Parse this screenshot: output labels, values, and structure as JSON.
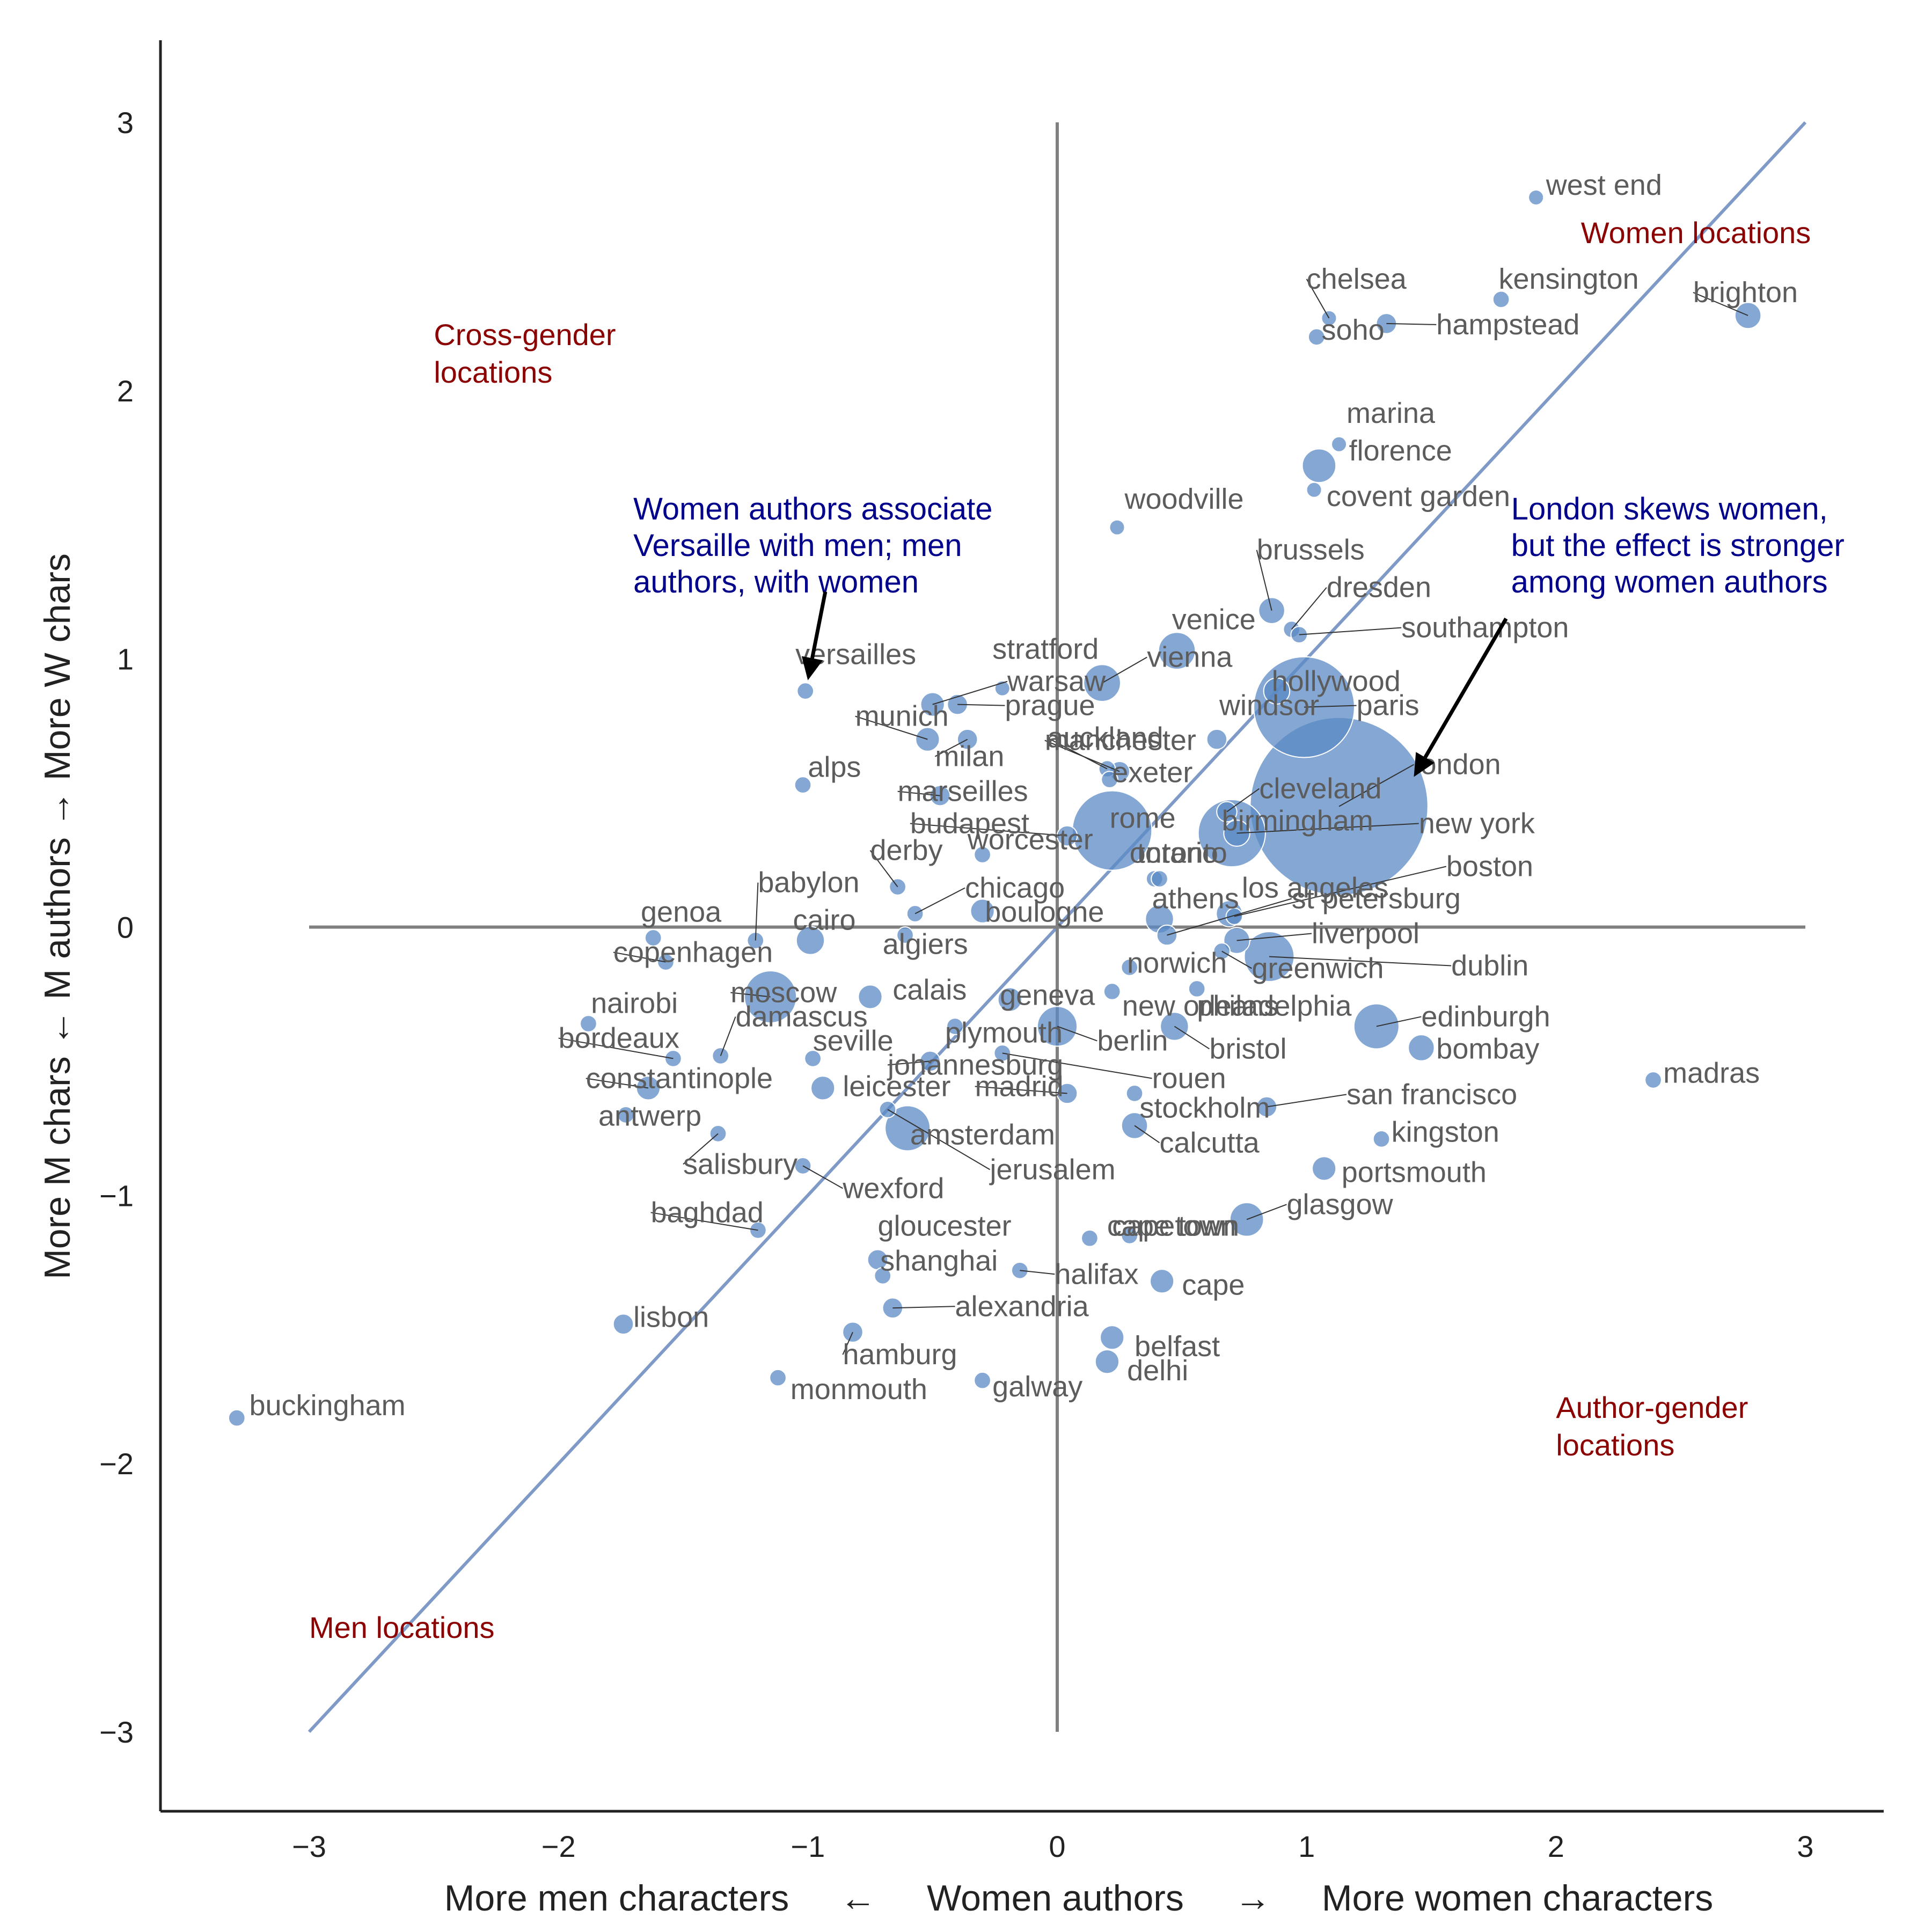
{
  "chart_data": {
    "type": "scatter",
    "xlabel": "More men characters     ←     Women authors     →     More women characters",
    "ylabel": "More M chars ← M authors → More W chars",
    "xlim": [
      -3.6,
      3.3
    ],
    "ylim": [
      -3.3,
      3.3
    ],
    "x_ticks": [
      {
        "value": -3,
        "label": "−3"
      },
      {
        "value": -2,
        "label": "−2"
      },
      {
        "value": -1,
        "label": "−1"
      },
      {
        "value": 0,
        "label": "0"
      },
      {
        "value": 1,
        "label": "1"
      },
      {
        "value": 2,
        "label": "2"
      },
      {
        "value": 3,
        "label": "3"
      }
    ],
    "y_ticks": [
      {
        "value": -3,
        "label": "−3"
      },
      {
        "value": -2,
        "label": "−2"
      },
      {
        "value": -1,
        "label": "−1"
      },
      {
        "value": 0,
        "label": "0"
      },
      {
        "value": 1,
        "label": "1"
      },
      {
        "value": 2,
        "label": "2"
      },
      {
        "value": 3,
        "label": "3"
      }
    ],
    "grid": false,
    "reference_lines": {
      "diagonal": [
        [
          -3,
          -3
        ],
        [
          3,
          3
        ]
      ],
      "horizontal_y": 0,
      "vertical_x": 0
    },
    "colors": {
      "points": "#5b8ac6",
      "diagonal": "#7f9ac6",
      "quadrant_lines": "#808080",
      "quadrant_labels": "#8b0000",
      "annotations": "#00008b",
      "point_labels": "#5c5c5c"
    },
    "quadrant_labels": [
      {
        "text": "Women locations",
        "x": 2.1,
        "y": 2.55
      },
      {
        "text": "Cross-gender",
        "x": -2.5,
        "y": 2.17
      },
      {
        "text": "locations",
        "x": -2.5,
        "y": 2.03
      },
      {
        "text": "Author-gender",
        "x": 2.0,
        "y": -1.83
      },
      {
        "text": "locations",
        "x": 2.0,
        "y": -1.97
      },
      {
        "text": "Men locations",
        "x": -3.0,
        "y": -2.65
      }
    ],
    "annotations": [
      {
        "lines": [
          "Women authors associate",
          "Versaille with men; men",
          "authors, with women"
        ],
        "x": -1.7,
        "y": 1.52,
        "arrow_from": [
          -0.93,
          1.25
        ],
        "arrow_to": [
          -1.0,
          0.92
        ]
      },
      {
        "lines": [
          "London skews women,",
          "but the effect is stronger",
          "among women authors"
        ],
        "x": 1.82,
        "y": 1.52,
        "arrow_from": [
          1.8,
          1.15
        ],
        "arrow_to": [
          1.43,
          0.56
        ]
      }
    ],
    "points": [
      {
        "name": "west end",
        "x": 1.92,
        "y": 2.72,
        "size": 1,
        "lx": 1.96,
        "ly": 2.73
      },
      {
        "name": "chelsea",
        "x": 1.09,
        "y": 2.27,
        "size": 1,
        "lx": 1.0,
        "ly": 2.38
      },
      {
        "name": "kensington",
        "x": 1.78,
        "y": 2.34,
        "size": 1.2,
        "lx": 1.77,
        "ly": 2.38
      },
      {
        "name": "brighton",
        "x": 2.77,
        "y": 2.28,
        "size": 3,
        "lx": 2.55,
        "ly": 2.33
      },
      {
        "name": "hampstead",
        "x": 1.32,
        "y": 2.25,
        "size": 1.8,
        "lx": 1.52,
        "ly": 2.21
      },
      {
        "name": "soho",
        "x": 1.04,
        "y": 2.2,
        "size": 1.2,
        "lx": 1.06,
        "ly": 2.19
      },
      {
        "name": "marina",
        "x": 1.13,
        "y": 1.8,
        "size": 1,
        "lx": 1.16,
        "ly": 1.88
      },
      {
        "name": "florence",
        "x": 1.05,
        "y": 1.72,
        "size": 5,
        "lx": 1.17,
        "ly": 1.74
      },
      {
        "name": "covent garden",
        "x": 1.03,
        "y": 1.63,
        "size": 1,
        "lx": 1.08,
        "ly": 1.57
      },
      {
        "name": "woodville",
        "x": 0.24,
        "y": 1.49,
        "size": 1,
        "lx": 0.27,
        "ly": 1.56
      },
      {
        "name": "brussels",
        "x": 0.86,
        "y": 1.18,
        "size": 3,
        "lx": 0.8,
        "ly": 1.37
      },
      {
        "name": "dresden",
        "x": 0.94,
        "y": 1.11,
        "size": 1.2,
        "lx": 1.08,
        "ly": 1.23
      },
      {
        "name": "southampton",
        "x": 0.97,
        "y": 1.09,
        "size": 1.2,
        "lx": 1.38,
        "ly": 1.08
      },
      {
        "name": "venice",
        "x": 0.48,
        "y": 1.03,
        "size": 6,
        "lx": 0.46,
        "ly": 1.11
      },
      {
        "name": "vienna",
        "x": 0.18,
        "y": 0.91,
        "size": 6,
        "lx": 0.36,
        "ly": 0.97
      },
      {
        "name": "stratford",
        "x": -0.22,
        "y": 0.89,
        "size": 1,
        "lx": -0.26,
        "ly": 1.0
      },
      {
        "name": "versailles",
        "x": -1.01,
        "y": 0.88,
        "size": 1.2,
        "lx": -1.05,
        "ly": 0.98
      },
      {
        "name": "hollywood",
        "x": 0.88,
        "y": 0.88,
        "size": 3,
        "lx": 0.86,
        "ly": 0.88
      },
      {
        "name": "warsaw",
        "x": -0.5,
        "y": 0.83,
        "size": 2.5,
        "lx": -0.2,
        "ly": 0.88
      },
      {
        "name": "prague",
        "x": -0.4,
        "y": 0.83,
        "size": 1.8,
        "lx": -0.21,
        "ly": 0.79
      },
      {
        "name": "paris",
        "x": 0.99,
        "y": 0.82,
        "size": 45,
        "lx": 1.2,
        "ly": 0.79
      },
      {
        "name": "windsor",
        "x": 0.64,
        "y": 0.7,
        "size": 1.8,
        "lx": 0.65,
        "ly": 0.79
      },
      {
        "name": "munich",
        "x": -0.52,
        "y": 0.7,
        "size": 2.5,
        "lx": -0.81,
        "ly": 0.75
      },
      {
        "name": "milan",
        "x": -0.36,
        "y": 0.7,
        "size": 1.8,
        "lx": -0.49,
        "ly": 0.6
      },
      {
        "name": "auckland",
        "x": 0.2,
        "y": 0.59,
        "size": 1.2,
        "lx": -0.04,
        "ly": 0.67
      },
      {
        "name": "manchester",
        "x": 0.25,
        "y": 0.58,
        "size": 1.8,
        "lx": -0.05,
        "ly": 0.66
      },
      {
        "name": "london",
        "x": 1.13,
        "y": 0.45,
        "size": 140,
        "lx": 1.43,
        "ly": 0.57
      },
      {
        "name": "alps",
        "x": -1.02,
        "y": 0.53,
        "size": 1.2,
        "lx": -1.0,
        "ly": 0.56
      },
      {
        "name": "exeter",
        "x": 0.21,
        "y": 0.55,
        "size": 1.2,
        "lx": 0.22,
        "ly": 0.54
      },
      {
        "name": "marseilles",
        "x": -0.47,
        "y": 0.49,
        "size": 1.8,
        "lx": -0.64,
        "ly": 0.47
      },
      {
        "name": "cleveland",
        "x": 0.68,
        "y": 0.43,
        "size": 1.8,
        "lx": 0.81,
        "ly": 0.48
      },
      {
        "name": "rome",
        "x": 0.22,
        "y": 0.36,
        "size": 28,
        "lx": 0.21,
        "ly": 0.37
      },
      {
        "name": "birmingham",
        "x": 0.7,
        "y": 0.35,
        "size": 20,
        "lx": 0.66,
        "ly": 0.36
      },
      {
        "name": "new york",
        "x": 0.72,
        "y": 0.35,
        "size": 3,
        "lx": 1.45,
        "ly": 0.35
      },
      {
        "name": "budapest",
        "x": 0.04,
        "y": 0.34,
        "size": 1.8,
        "lx": -0.59,
        "ly": 0.35
      },
      {
        "name": "worcester",
        "x": -0.3,
        "y": 0.27,
        "size": 1.2,
        "lx": -0.36,
        "ly": 0.29
      },
      {
        "name": "derby",
        "x": -0.64,
        "y": 0.15,
        "size": 1.2,
        "lx": -0.75,
        "ly": 0.25
      },
      {
        "name": "ontario",
        "x": 0.39,
        "y": 0.18,
        "size": 1.2,
        "lx": 0.29,
        "ly": 0.24
      },
      {
        "name": "toronto",
        "x": 0.41,
        "y": 0.18,
        "size": 1.2,
        "lx": 0.32,
        "ly": 0.24
      },
      {
        "name": "boston",
        "x": 0.71,
        "y": 0.04,
        "size": 1.2,
        "lx": 1.56,
        "ly": 0.19
      },
      {
        "name": "babylon",
        "x": -1.21,
        "y": -0.05,
        "size": 1.2,
        "lx": -1.2,
        "ly": 0.13
      },
      {
        "name": "chicago",
        "x": -0.57,
        "y": 0.05,
        "size": 1.2,
        "lx": -0.37,
        "ly": 0.11
      },
      {
        "name": "los angeles",
        "x": 0.69,
        "y": 0.05,
        "size": 3,
        "lx": 0.74,
        "ly": 0.11
      },
      {
        "name": "st petersburg",
        "x": 0.44,
        "y": -0.03,
        "size": 1.8,
        "lx": 0.94,
        "ly": 0.07
      },
      {
        "name": "athens",
        "x": 0.41,
        "y": 0.03,
        "size": 3.5,
        "lx": 0.38,
        "ly": 0.07
      },
      {
        "name": "boulogne",
        "x": -0.3,
        "y": 0.06,
        "size": 2.5,
        "lx": -0.29,
        "ly": 0.02
      },
      {
        "name": "genoa",
        "x": -1.62,
        "y": -0.04,
        "size": 1.2,
        "lx": -1.67,
        "ly": 0.02
      },
      {
        "name": "cairo",
        "x": -0.99,
        "y": -0.05,
        "size": 3.5,
        "lx": -1.06,
        "ly": -0.01
      },
      {
        "name": "algiers",
        "x": -0.61,
        "y": -0.03,
        "size": 1.2,
        "lx": -0.7,
        "ly": -0.1
      },
      {
        "name": "liverpool",
        "x": 0.72,
        "y": -0.05,
        "size": 3,
        "lx": 1.02,
        "ly": -0.06
      },
      {
        "name": "copenhagen",
        "x": -1.57,
        "y": -0.13,
        "size": 1.2,
        "lx": -1.78,
        "ly": -0.13
      },
      {
        "name": "dublin",
        "x": 0.85,
        "y": -0.11,
        "size": 11,
        "lx": 1.58,
        "ly": -0.18
      },
      {
        "name": "norwich",
        "x": 0.29,
        "y": -0.15,
        "size": 1.2,
        "lx": 0.28,
        "ly": -0.17
      },
      {
        "name": "greenwich",
        "x": 0.66,
        "y": -0.09,
        "size": 1.2,
        "lx": 0.78,
        "ly": -0.19
      },
      {
        "name": "moscow",
        "x": -1.15,
        "y": -0.26,
        "size": 12,
        "lx": -1.31,
        "ly": -0.28
      },
      {
        "name": "calais",
        "x": -0.75,
        "y": -0.26,
        "size": 2.5,
        "lx": -0.66,
        "ly": -0.27
      },
      {
        "name": "geneva",
        "x": -0.19,
        "y": -0.27,
        "size": 2.5,
        "lx": -0.23,
        "ly": -0.29
      },
      {
        "name": "nairobi",
        "x": -1.88,
        "y": -0.36,
        "size": 1.2,
        "lx": -1.87,
        "ly": -0.32
      },
      {
        "name": "new orleans",
        "x": 0.22,
        "y": -0.24,
        "size": 1.2,
        "lx": 0.26,
        "ly": -0.33
      },
      {
        "name": "philadelphia",
        "x": 0.56,
        "y": -0.23,
        "size": 1.2,
        "lx": 0.56,
        "ly": -0.33
      },
      {
        "name": "edinburgh",
        "x": 1.28,
        "y": -0.37,
        "size": 9,
        "lx": 1.46,
        "ly": -0.37
      },
      {
        "name": "damascus",
        "x": -1.35,
        "y": -0.48,
        "size": 1.2,
        "lx": -1.29,
        "ly": -0.37
      },
      {
        "name": "plymouth",
        "x": -0.41,
        "y": -0.37,
        "size": 1.2,
        "lx": -0.45,
        "ly": -0.43
      },
      {
        "name": "berlin",
        "x": 0.0,
        "y": -0.37,
        "size": 7,
        "lx": 0.16,
        "ly": -0.46
      },
      {
        "name": "bristol",
        "x": 0.47,
        "y": -0.37,
        "size": 3.5,
        "lx": 0.61,
        "ly": -0.49
      },
      {
        "name": "bordeaux",
        "x": -1.54,
        "y": -0.49,
        "size": 1.2,
        "lx": -2.0,
        "ly": -0.45
      },
      {
        "name": "seville",
        "x": -0.98,
        "y": -0.49,
        "size": 1.2,
        "lx": -0.98,
        "ly": -0.46
      },
      {
        "name": "bombay",
        "x": 1.46,
        "y": -0.45,
        "size": 3,
        "lx": 1.52,
        "ly": -0.49
      },
      {
        "name": "johannesburg",
        "x": -0.51,
        "y": -0.5,
        "size": 1.8,
        "lx": -0.68,
        "ly": -0.55
      },
      {
        "name": "rouen",
        "x": -0.22,
        "y": -0.47,
        "size": 1.2,
        "lx": 0.38,
        "ly": -0.6
      },
      {
        "name": "constantinople",
        "x": -1.64,
        "y": -0.6,
        "size": 2.5,
        "lx": -1.89,
        "ly": -0.6
      },
      {
        "name": "madras",
        "x": 2.39,
        "y": -0.57,
        "size": 1.2,
        "lx": 2.43,
        "ly": -0.58
      },
      {
        "name": "leicester",
        "x": -0.94,
        "y": -0.6,
        "size": 2.5,
        "lx": -0.86,
        "ly": -0.63
      },
      {
        "name": "madrid",
        "x": 0.04,
        "y": -0.62,
        "size": 1.8,
        "lx": -0.33,
        "ly": -0.63
      },
      {
        "name": "san francisco",
        "x": 0.84,
        "y": -0.67,
        "size": 1.8,
        "lx": 1.16,
        "ly": -0.66
      },
      {
        "name": "stockholm",
        "x": 0.31,
        "y": -0.62,
        "size": 1.2,
        "lx": 0.33,
        "ly": -0.71
      },
      {
        "name": "antwerp",
        "x": -1.73,
        "y": -0.7,
        "size": 1.2,
        "lx": -1.84,
        "ly": -0.74
      },
      {
        "name": "amsterdam",
        "x": -0.6,
        "y": -0.75,
        "size": 9,
        "lx": -0.59,
        "ly": -0.81
      },
      {
        "name": "calcutta",
        "x": 0.31,
        "y": -0.74,
        "size": 3,
        "lx": 0.41,
        "ly": -0.84
      },
      {
        "name": "kingston",
        "x": 1.3,
        "y": -0.79,
        "size": 1.2,
        "lx": 1.34,
        "ly": -0.8
      },
      {
        "name": "salisbury",
        "x": -1.36,
        "y": -0.77,
        "size": 1.2,
        "lx": -1.5,
        "ly": -0.92
      },
      {
        "name": "jerusalem",
        "x": -0.68,
        "y": -0.68,
        "size": 1.2,
        "lx": -0.27,
        "ly": -0.94
      },
      {
        "name": "wexford",
        "x": -1.02,
        "y": -0.89,
        "size": 1.2,
        "lx": -0.86,
        "ly": -1.01
      },
      {
        "name": "portsmouth",
        "x": 1.07,
        "y": -0.9,
        "size": 2.5,
        "lx": 1.14,
        "ly": -0.95
      },
      {
        "name": "glasgow",
        "x": 0.76,
        "y": -1.09,
        "size": 5,
        "lx": 0.92,
        "ly": -1.07
      },
      {
        "name": "baghdad",
        "x": -1.2,
        "y": -1.13,
        "size": 1.2,
        "lx": -1.63,
        "ly": -1.1
      },
      {
        "name": "gloucester",
        "x": -0.72,
        "y": -1.24,
        "size": 1.8,
        "lx": -0.72,
        "ly": -1.15
      },
      {
        "name": "cape town",
        "x": 0.13,
        "y": -1.16,
        "size": 1.2,
        "lx": 0.2,
        "ly": -1.15
      },
      {
        "name": "capetown",
        "x": 0.29,
        "y": -1.15,
        "size": 1.2,
        "lx": 0.22,
        "ly": -1.15
      },
      {
        "name": "shanghai",
        "x": -0.7,
        "y": -1.3,
        "size": 1.2,
        "lx": -0.71,
        "ly": -1.28
      },
      {
        "name": "halifax",
        "x": -0.15,
        "y": -1.28,
        "size": 1.2,
        "lx": -0.01,
        "ly": -1.33
      },
      {
        "name": "cape",
        "x": 0.42,
        "y": -1.32,
        "size": 2.5,
        "lx": 0.5,
        "ly": -1.37
      },
      {
        "name": "alexandria",
        "x": -0.66,
        "y": -1.42,
        "size": 1.8,
        "lx": -0.41,
        "ly": -1.45
      },
      {
        "name": "lisbon",
        "x": -1.74,
        "y": -1.48,
        "size": 1.8,
        "lx": -1.7,
        "ly": -1.49
      },
      {
        "name": "belfast",
        "x": 0.22,
        "y": -1.53,
        "size": 2.5,
        "lx": 0.31,
        "ly": -1.6
      },
      {
        "name": "hamburg",
        "x": -0.82,
        "y": -1.51,
        "size": 1.8,
        "lx": -0.86,
        "ly": -1.63
      },
      {
        "name": "delhi",
        "x": 0.2,
        "y": -1.62,
        "size": 2.5,
        "lx": 0.28,
        "ly": -1.69
      },
      {
        "name": "monmouth",
        "x": -1.12,
        "y": -1.68,
        "size": 1.2,
        "lx": -1.07,
        "ly": -1.76
      },
      {
        "name": "galway",
        "x": -0.3,
        "y": -1.69,
        "size": 1.2,
        "lx": -0.26,
        "ly": -1.75
      },
      {
        "name": "buckingham",
        "x": -3.29,
        "y": -1.83,
        "size": 1.2,
        "lx": -3.24,
        "ly": -1.82
      }
    ]
  }
}
